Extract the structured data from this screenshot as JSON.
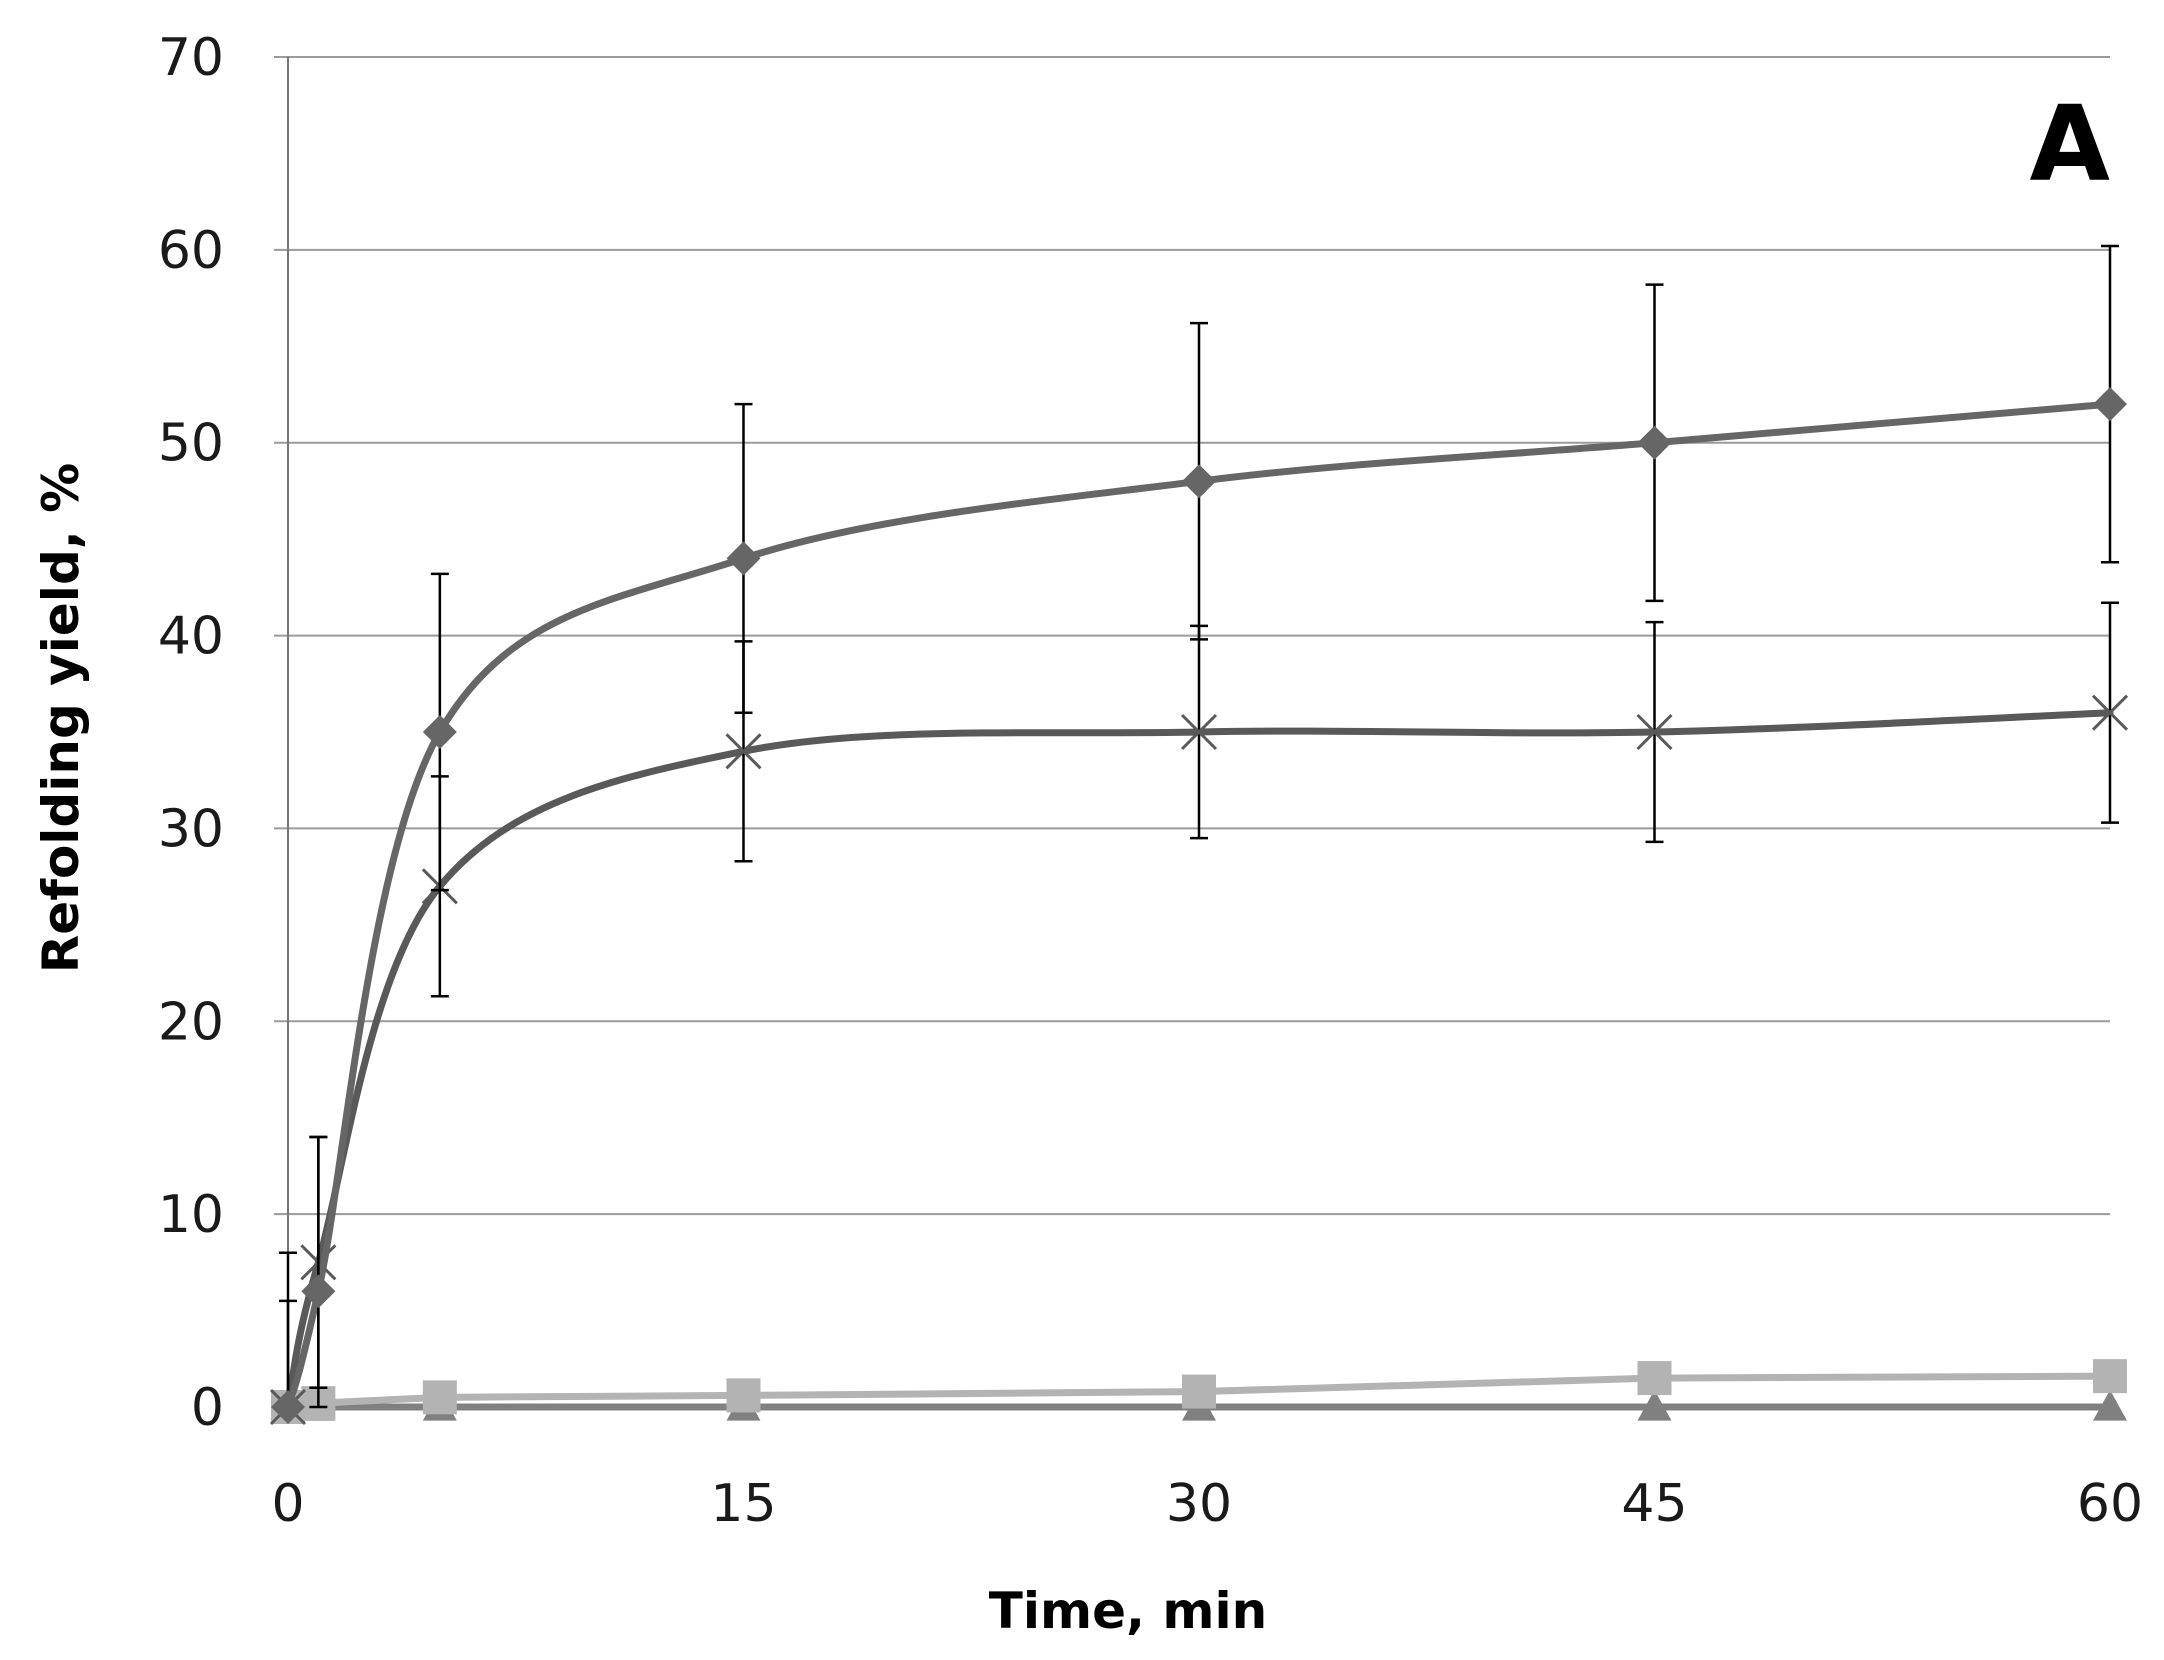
{
  "chart_data": {
    "type": "line",
    "panel_label": "A",
    "title": "",
    "xlabel": "Time, min",
    "ylabel": "Refolding yield, %",
    "xlim": [
      0,
      60
    ],
    "ylim": [
      0,
      70
    ],
    "x_ticks": [
      0,
      15,
      30,
      45,
      60
    ],
    "y_ticks": [
      0,
      10,
      20,
      30,
      40,
      50,
      60,
      70
    ],
    "grid": "horizontal",
    "legend": "none",
    "series": [
      {
        "marker": "diamond",
        "color": "#666666",
        "x": [
          0,
          1,
          5,
          15,
          30,
          45,
          60
        ],
        "y": [
          0,
          6,
          35,
          44,
          48,
          50,
          52
        ],
        "error": [
          8,
          8,
          8.2,
          8,
          8.2,
          8.2,
          8.2
        ]
      },
      {
        "marker": "x",
        "color": "#595959",
        "x": [
          0,
          1,
          5,
          15,
          30,
          45,
          60
        ],
        "y": [
          0,
          7.5,
          27,
          34,
          35,
          35,
          36
        ],
        "error": [
          5.5,
          6.5,
          5.7,
          5.7,
          5.5,
          5.7,
          5.7
        ]
      },
      {
        "marker": "square",
        "color": "#b3b3b3",
        "x": [
          0,
          1,
          5,
          15,
          30,
          45,
          60
        ],
        "y": [
          0,
          0.2,
          0.5,
          0.6,
          0.8,
          1.5,
          1.6
        ]
      },
      {
        "marker": "triangle",
        "color": "#808080",
        "x": [
          0,
          1,
          5,
          15,
          30,
          45,
          60
        ],
        "y": [
          0,
          0,
          0,
          0,
          0,
          0,
          0
        ]
      }
    ]
  }
}
